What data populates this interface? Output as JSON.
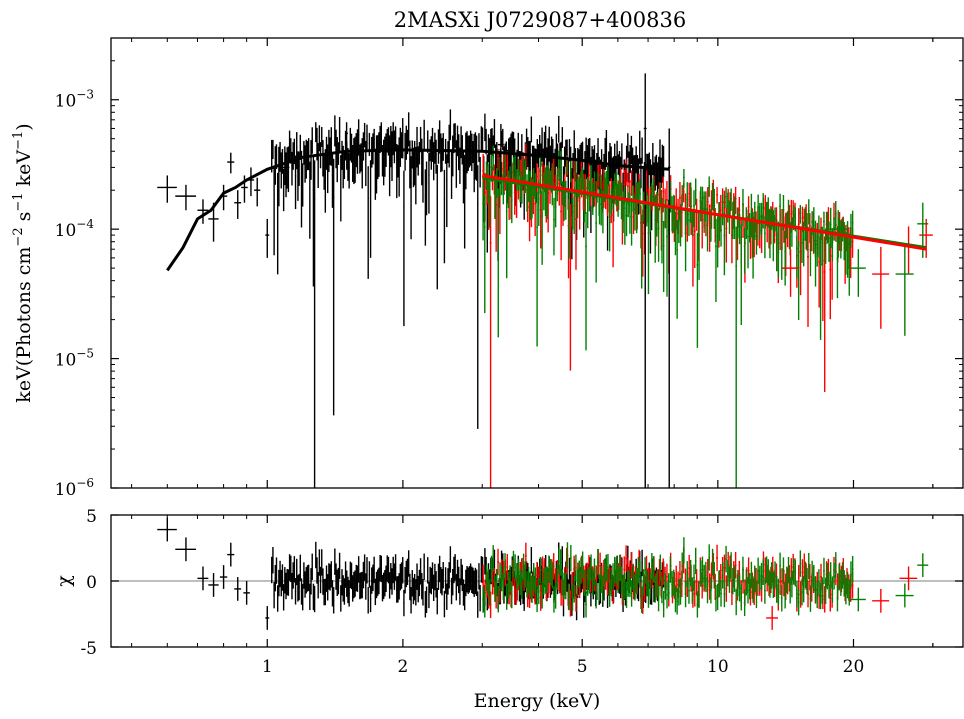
{
  "chart_data": {
    "title": "2MASXi J0729087+400836",
    "xlabel": "Energy (keV)",
    "x_scale": "log",
    "xlim": [
      0.45,
      35
    ],
    "x_ticks": [
      {
        "value": 1,
        "label": "1"
      },
      {
        "value": 2,
        "label": "2"
      },
      {
        "value": 5,
        "label": "5"
      },
      {
        "value": 10,
        "label": "10"
      },
      {
        "value": 20,
        "label": "20"
      }
    ],
    "panels": [
      {
        "type": "scatter",
        "name": "spectrum",
        "y_scale": "log",
        "ylim": [
          1e-06,
          0.003
        ],
        "ylabel": "keV(Photons cm",
        "ylabel_exp1": "−2",
        "ylabel_mid": " s",
        "ylabel_exp2": "−1",
        "ylabel_mid2": " keV",
        "ylabel_exp3": "−1",
        "ylabel_end": ")",
        "y_ticks": [
          {
            "value": 0.001,
            "base": "10",
            "exp": "−3"
          },
          {
            "value": 0.0001,
            "base": "10",
            "exp": "−4"
          },
          {
            "value": 1e-05,
            "base": "10",
            "exp": "−5"
          },
          {
            "value": 1e-06,
            "base": "10",
            "exp": "−6"
          }
        ],
        "series": [
          {
            "color": "#000000",
            "points": [
              {
                "x": 0.6,
                "y": 0.00021,
                "xe": 0.03,
                "ye": 5e-05
              },
              {
                "x": 0.66,
                "y": 0.00018,
                "xe": 0.035,
                "ye": 4e-05
              },
              {
                "x": 0.72,
                "y": 0.00014,
                "xe": 0.02,
                "ye": 3e-05
              },
              {
                "x": 0.76,
                "y": 0.00012,
                "xe": 0.02,
                "ye": 4e-05
              },
              {
                "x": 0.8,
                "y": 0.00018,
                "xe": 0.015,
                "ye": 4e-05
              },
              {
                "x": 0.83,
                "y": 0.00033,
                "xe": 0.015,
                "ye": 6e-05
              },
              {
                "x": 0.86,
                "y": 0.00016,
                "xe": 0.015,
                "ye": 4e-05
              },
              {
                "x": 0.89,
                "y": 0.00021,
                "xe": 0.015,
                "ye": 5e-05
              },
              {
                "x": 0.92,
                "y": 0.00024,
                "xe": 0.015,
                "ye": 6e-05
              },
              {
                "x": 0.95,
                "y": 0.0002,
                "xe": 0.015,
                "ye": 5e-05
              },
              {
                "x": 1.0,
                "y": 9e-05,
                "xe": 0.01,
                "ye": 3e-05
              },
              {
                "x": 1.1,
                "y": 0.0003,
                "xe": 0.02,
                "ye": 8e-05
              },
              {
                "x": 1.5,
                "y": 0.00055,
                "xe": 0.01,
                "ye": 0.00012
              },
              {
                "x": 3.3,
                "y": 0.00045,
                "xe": 0.05,
                "ye": 0.0002
              },
              {
                "x": 6.9,
                "y": 0.0006,
                "xe": 0.05,
                "ye": 0.001
              },
              {
                "x": 7.8,
                "y": 0.0003,
                "xe": 0.05,
                "ye": 0.000299
              }
            ]
          },
          {
            "color": "#ff0000",
            "points": [
              {
                "x": 14.5,
                "y": 5e-05,
                "xe": 0.6,
                "ye": 2e-05
              },
              {
                "x": 23.0,
                "y": 4.5e-05,
                "xe": 1.0,
                "ye": 2.8e-05
              },
              {
                "x": 26.5,
                "y": 7.5e-05,
                "xe": 1.2,
                "ye": 3e-05
              },
              {
                "x": 29.0,
                "y": 9e-05,
                "xe": 1.0,
                "ye": 3e-05
              }
            ]
          },
          {
            "color": "#008000",
            "points": [
              {
                "x": 18.5,
                "y": 0.0001,
                "xe": 0.8,
                "ye": 4e-05
              },
              {
                "x": 20.5,
                "y": 5e-05,
                "xe": 0.8,
                "ye": 2e-05
              },
              {
                "x": 26.0,
                "y": 4.5e-05,
                "xe": 1.2,
                "ye": 3e-05
              },
              {
                "x": 28.5,
                "y": 0.00011,
                "xe": 0.8,
                "ye": 5e-05
              }
            ]
          }
        ],
        "model_lines": [
          {
            "color": "#000000",
            "points": [
              [
                0.6,
                4.8e-05
              ],
              [
                0.65,
                7.2e-05
              ],
              [
                0.7,
                0.00012
              ],
              [
                0.75,
                0.00014
              ],
              [
                0.8,
                0.00019
              ],
              [
                0.85,
                0.00021
              ],
              [
                0.9,
                0.00024
              ],
              [
                1.0,
                0.00029
              ],
              [
                1.2,
                0.00036
              ],
              [
                1.5,
                0.0004
              ],
              [
                2.0,
                0.00041
              ],
              [
                3.0,
                0.0004
              ],
              [
                4.0,
                0.00037
              ],
              [
                5.0,
                0.00034
              ],
              [
                6.0,
                0.00031
              ],
              [
                7.8,
                0.00029
              ]
            ]
          },
          {
            "color": "#008000",
            "points": [
              [
                3.0,
                0.00025
              ],
              [
                29.0,
                7.2e-05
              ]
            ]
          },
          {
            "color": "#ff0000",
            "points": [
              [
                3.0,
                0.00026
              ],
              [
                29.0,
                7e-05
              ]
            ]
          }
        ]
      },
      {
        "type": "scatter",
        "name": "residuals",
        "ylabel": "χ",
        "ylim": [
          -5,
          5
        ],
        "y_ticks": [
          {
            "value": 5,
            "label": "5"
          },
          {
            "value": 0,
            "label": "0"
          },
          {
            "value": -5,
            "label": "-5"
          }
        ],
        "zero_line": 0,
        "series": [
          {
            "color": "#000000",
            "points": [
              {
                "x": 0.6,
                "y": 3.9,
                "xe": 0.03,
                "ye": 0.9
              },
              {
                "x": 0.66,
                "y": 2.4,
                "xe": 0.035,
                "ye": 0.9
              },
              {
                "x": 0.72,
                "y": 0.2,
                "xe": 0.02,
                "ye": 0.9
              },
              {
                "x": 0.76,
                "y": -0.3,
                "xe": 0.02,
                "ye": 0.9
              },
              {
                "x": 0.8,
                "y": 0.3,
                "xe": 0.015,
                "ye": 0.9
              },
              {
                "x": 0.83,
                "y": 2.0,
                "xe": 0.015,
                "ye": 0.9
              },
              {
                "x": 0.86,
                "y": -0.6,
                "xe": 0.015,
                "ye": 0.9
              },
              {
                "x": 0.9,
                "y": -0.9,
                "xe": 0.015,
                "ye": 0.9
              },
              {
                "x": 1.0,
                "y": -2.8,
                "xe": 0.01,
                "ye": 0.9
              }
            ]
          },
          {
            "color": "#ff0000",
            "points": [
              {
                "x": 13.2,
                "y": -2.8,
                "xe": 0.4,
                "ye": 0.9
              },
              {
                "x": 23.0,
                "y": -1.5,
                "xe": 1.0,
                "ye": 0.9
              },
              {
                "x": 26.5,
                "y": 0.2,
                "xe": 1.2,
                "ye": 0.9
              }
            ]
          },
          {
            "color": "#008000",
            "points": [
              {
                "x": 20.5,
                "y": -1.4,
                "xe": 0.8,
                "ye": 0.9
              },
              {
                "x": 26.0,
                "y": -1.1,
                "xe": 1.2,
                "ye": 0.9
              },
              {
                "x": 28.5,
                "y": 1.2,
                "xe": 0.8,
                "ye": 0.9
              }
            ]
          }
        ]
      }
    ]
  }
}
